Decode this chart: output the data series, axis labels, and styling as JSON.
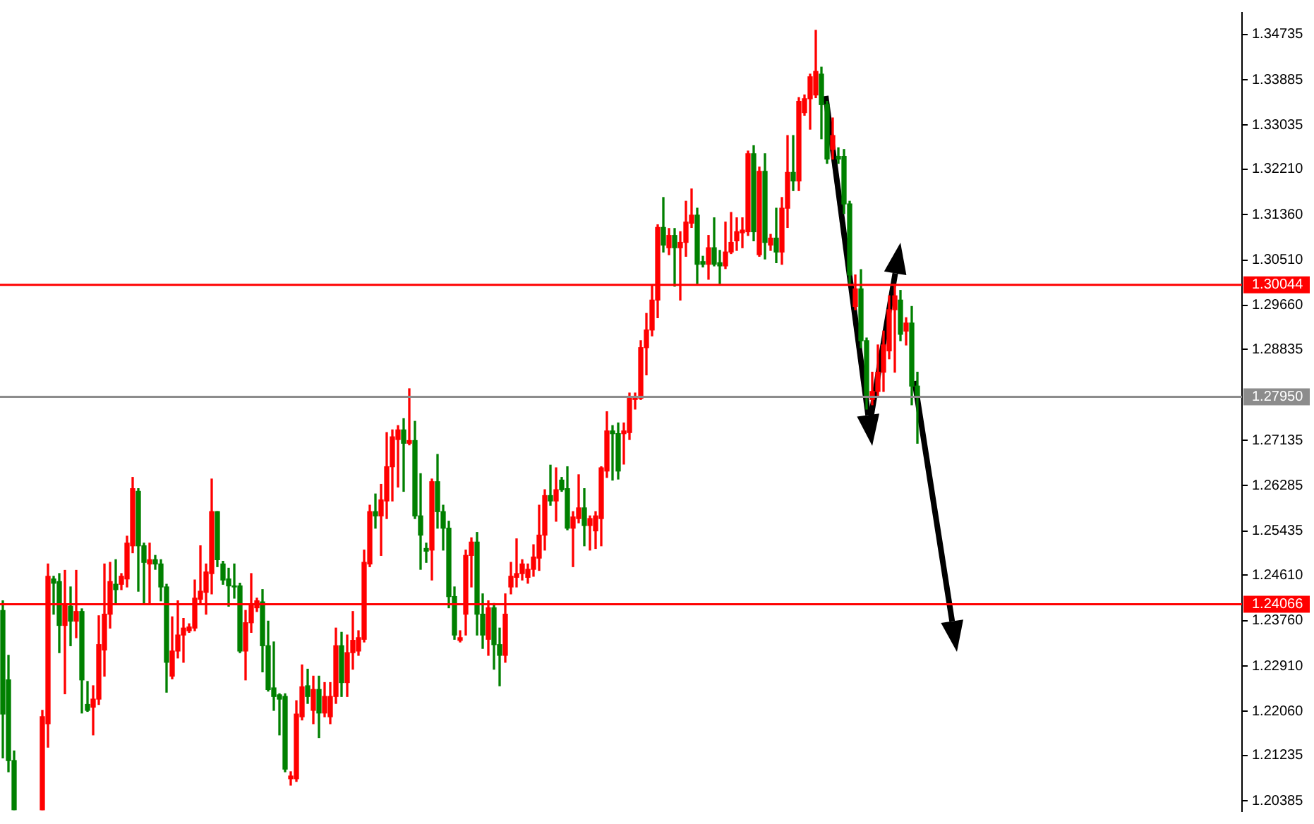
{
  "chart_data": {
    "type": "candlestick",
    "categories": [
      null,
      null,
      null,
      null,
      null,
      null,
      null,
      null,
      null,
      null,
      null,
      null,
      null,
      null,
      null,
      null,
      null,
      null,
      null,
      null,
      null,
      null,
      null,
      null,
      null,
      null,
      null,
      null,
      null,
      null,
      null,
      null,
      null,
      null,
      null,
      null,
      null,
      null,
      null,
      null,
      null,
      null,
      null,
      null,
      null,
      null,
      null,
      null,
      null,
      null,
      null,
      null,
      null,
      null,
      null,
      null,
      null,
      null,
      null,
      null,
      null,
      null,
      null,
      null,
      null,
      null,
      null,
      null,
      null,
      null,
      null,
      null,
      null,
      null,
      null,
      null,
      null,
      null,
      null,
      null,
      null,
      null,
      null,
      null,
      null,
      null,
      null,
      null,
      null,
      null,
      null,
      null,
      null,
      null,
      null,
      null,
      null,
      null,
      null,
      null,
      null,
      null,
      null,
      null,
      null,
      null,
      null,
      null,
      null,
      null,
      null,
      null,
      null,
      null,
      null,
      null,
      null,
      null,
      null,
      null,
      null,
      null,
      null,
      null,
      null,
      null,
      null,
      null,
      null,
      null,
      null,
      null,
      null,
      null,
      null,
      null,
      null,
      null,
      null,
      null,
      null,
      null,
      null,
      null,
      null,
      null,
      null,
      null,
      null,
      null,
      null,
      null,
      null,
      null,
      null,
      null,
      null,
      null,
      null,
      null,
      null,
      null,
      null,
      null,
      null,
      null,
      null,
      null,
      null,
      null,
      null,
      null,
      null,
      null,
      null,
      null,
      null,
      null,
      null,
      null,
      null,
      null,
      null,
      null,
      null,
      null,
      null,
      null,
      null,
      null,
      null,
      null,
      null,
      null,
      null,
      null,
      null,
      null,
      null,
      null,
      null,
      null,
      null,
      null,
      null,
      null,
      null,
      null,
      null,
      null,
      null,
      null,
      null,
      null,
      null,
      null,
      null,
      null,
      null,
      null
    ],
    "ohlc": [
      [
        1.2395,
        1.2413,
        1.2119,
        1.2201
      ],
      [
        1.2265,
        1.2311,
        1.2093,
        1.2114
      ],
      [
        1.2114,
        1.2132,
        1.2022,
        1.2022
      ],
      null,
      null,
      null,
      null,
      [
        1.2022,
        1.2208,
        1.2022,
        1.2196
      ],
      [
        1.2183,
        1.2482,
        1.2139,
        1.2459
      ],
      [
        1.2454,
        1.2459,
        1.2388,
        1.2446
      ],
      [
        1.2449,
        1.2464,
        1.2316,
        1.2367
      ],
      [
        1.2367,
        1.247,
        1.2239,
        1.2406
      ],
      [
        1.2403,
        1.2439,
        1.2329,
        1.2375
      ],
      [
        1.2375,
        1.247,
        1.2344,
        1.2393
      ],
      [
        1.2393,
        1.2398,
        1.2203,
        1.2265
      ],
      [
        1.2219,
        1.2262,
        1.2206,
        1.2208
      ],
      [
        1.2214,
        1.2254,
        1.2162,
        1.2229
      ],
      [
        1.2229,
        1.2385,
        1.2219,
        1.2331
      ],
      [
        1.2321,
        1.2482,
        1.2272,
        1.2388
      ],
      [
        1.2388,
        1.2485,
        1.2362,
        1.2449
      ],
      [
        1.2444,
        1.249,
        1.2408,
        1.2434
      ],
      [
        1.2444,
        1.2464,
        1.2434,
        1.2459
      ],
      [
        1.2454,
        1.2534,
        1.2439,
        1.2521
      ],
      [
        1.2516,
        1.2644,
        1.2503,
        1.2623
      ],
      [
        1.2618,
        1.2623,
        1.2431,
        1.2516
      ],
      [
        1.2516,
        1.2521,
        1.2408,
        1.2485
      ],
      [
        1.2482,
        1.2521,
        1.2406,
        1.249
      ],
      [
        1.249,
        1.2498,
        1.2472,
        1.2482
      ],
      [
        1.2482,
        1.249,
        1.2413,
        1.2439
      ],
      [
        1.2439,
        1.2444,
        1.2242,
        1.2298
      ],
      [
        1.2272,
        1.2383,
        1.2267,
        1.2319
      ],
      [
        1.2319,
        1.2413,
        1.2306,
        1.2349
      ],
      [
        1.2349,
        1.238,
        1.2298,
        1.2362
      ],
      [
        1.2357,
        1.237,
        1.2354,
        1.2364
      ],
      [
        1.2362,
        1.2452,
        1.2357,
        1.2418
      ],
      [
        1.2416,
        1.2516,
        1.2406,
        1.2431
      ],
      [
        1.2429,
        1.2482,
        1.2388,
        1.2467
      ],
      [
        1.2464,
        1.2641,
        1.2426,
        1.258
      ],
      [
        1.258,
        1.258,
        1.2477,
        1.249
      ],
      [
        1.2482,
        1.2487,
        1.2444,
        1.2452
      ],
      [
        1.2454,
        1.2474,
        1.2403,
        1.2441
      ],
      [
        1.2441,
        1.2482,
        1.2418,
        1.2439
      ],
      [
        1.2441,
        1.2446,
        1.2316,
        1.2319
      ],
      [
        1.2319,
        1.2395,
        1.2265,
        1.2372
      ],
      [
        1.2372,
        1.2464,
        1.2354,
        1.2406
      ],
      [
        1.24,
        1.2418,
        1.2393,
        1.2413
      ],
      [
        1.2411,
        1.2434,
        1.228,
        1.2329
      ],
      [
        1.2329,
        1.2375,
        1.2244,
        1.2247
      ],
      [
        1.225,
        1.2336,
        1.2208,
        1.2234
      ],
      [
        1.2237,
        1.2239,
        1.2162,
        1.2229
      ],
      [
        1.2234,
        1.2239,
        1.2093,
        1.2098
      ],
      [
        1.208,
        1.2093,
        1.2068,
        1.2085
      ],
      [
        1.208,
        1.2226,
        1.2075,
        1.2201
      ],
      [
        1.2196,
        1.2293,
        1.219,
        1.2252
      ],
      [
        1.2254,
        1.2285,
        1.2221,
        1.2234
      ],
      [
        1.2208,
        1.2272,
        1.2183,
        1.2247
      ],
      [
        1.2247,
        1.2272,
        1.2157,
        1.2203
      ],
      [
        1.2203,
        1.226,
        1.2196,
        1.2234
      ],
      [
        1.2196,
        1.226,
        1.2183,
        1.2234
      ],
      [
        1.2234,
        1.2362,
        1.2221,
        1.2329
      ],
      [
        1.2329,
        1.2354,
        1.2234,
        1.226
      ],
      [
        1.226,
        1.2349,
        1.2234,
        1.2316
      ],
      [
        1.2316,
        1.2393,
        1.2285,
        1.2339
      ],
      [
        1.2319,
        1.2357,
        1.2311,
        1.2344
      ],
      [
        1.2341,
        1.2508,
        1.2336,
        1.2485
      ],
      [
        1.2482,
        1.2592,
        1.2477,
        1.258
      ],
      [
        1.258,
        1.2613,
        1.2549,
        1.2572
      ],
      [
        1.2572,
        1.2631,
        1.2498,
        1.2602
      ],
      [
        1.26,
        1.2728,
        1.2567,
        1.2664
      ],
      [
        1.2664,
        1.2733,
        1.26,
        1.272
      ],
      [
        1.2715,
        1.2741,
        1.2626,
        1.2733
      ],
      [
        1.2733,
        1.2754,
        1.2618,
        1.2708
      ],
      [
        1.2708,
        1.281,
        1.2705,
        1.2713
      ],
      [
        1.2713,
        1.2749,
        1.2567,
        1.2572
      ],
      [
        1.2572,
        1.2651,
        1.2472,
        1.2536
      ],
      [
        1.2511,
        1.2521,
        1.2485,
        1.2506
      ],
      [
        1.2508,
        1.2641,
        1.2452,
        1.2636
      ],
      [
        1.2636,
        1.2687,
        1.2549,
        1.258
      ],
      [
        1.258,
        1.2592,
        1.2508,
        1.2549
      ],
      [
        1.2549,
        1.2562,
        1.24,
        1.2421
      ],
      [
        1.2421,
        1.2439,
        1.2341,
        1.2349
      ],
      [
        1.2339,
        1.2357,
        1.2336,
        1.2344
      ],
      [
        1.2388,
        1.2508,
        1.2349,
        1.2498
      ],
      [
        1.2498,
        1.2531,
        1.2439,
        1.2523
      ],
      [
        1.2523,
        1.2541,
        1.2349,
        1.2388
      ],
      [
        1.2388,
        1.2426,
        1.2324,
        1.2349
      ],
      [
        1.2341,
        1.2413,
        1.2311,
        1.24
      ],
      [
        1.24,
        1.2408,
        1.2285,
        1.2331
      ],
      [
        1.2331,
        1.2362,
        1.2254,
        1.2311
      ],
      [
        1.2311,
        1.2426,
        1.2298,
        1.2388
      ],
      [
        1.2439,
        1.2485,
        1.2426,
        1.2459
      ],
      [
        1.2457,
        1.2529,
        1.2439,
        1.2464
      ],
      [
        1.2464,
        1.249,
        1.2452,
        1.2482
      ],
      [
        1.2457,
        1.2482,
        1.2446,
        1.2472
      ],
      [
        1.2472,
        1.2518,
        1.2459,
        1.2495
      ],
      [
        1.2493,
        1.2592,
        1.247,
        1.2536
      ],
      [
        1.2536,
        1.2621,
        1.2508,
        1.261
      ],
      [
        1.261,
        1.2667,
        1.2592,
        1.26
      ],
      [
        1.26,
        1.2662,
        1.2562,
        1.2621
      ],
      [
        1.2639,
        1.2644,
        1.2618,
        1.2621
      ],
      [
        1.2623,
        1.2664,
        1.2546,
        1.2549
      ],
      [
        1.2549,
        1.258,
        1.2477,
        1.257
      ],
      [
        1.2567,
        1.2649,
        1.2559,
        1.2587
      ],
      [
        1.2587,
        1.2623,
        1.2516,
        1.2554
      ],
      [
        1.2554,
        1.2572,
        1.2508,
        1.2567
      ],
      [
        1.2544,
        1.258,
        1.2511,
        1.2572
      ],
      [
        1.2567,
        1.2664,
        1.2516,
        1.2662
      ],
      [
        1.2656,
        1.2767,
        1.2644,
        1.2731
      ],
      [
        1.2731,
        1.2741,
        1.2639,
        1.2726
      ],
      [
        1.2726,
        1.2746,
        1.2641,
        1.2656
      ],
      [
        1.2726,
        1.2746,
        1.2669,
        1.2731
      ],
      [
        1.2728,
        1.2802,
        1.2715,
        1.2792
      ],
      [
        1.279,
        1.2802,
        1.2772,
        1.2795
      ],
      [
        1.2792,
        1.29,
        1.279,
        1.2887
      ],
      [
        1.2887,
        1.2951,
        1.2836,
        1.292
      ],
      [
        1.292,
        1.3002,
        1.2909,
        1.2976
      ],
      [
        1.2976,
        1.3117,
        1.2943,
        1.3112
      ],
      [
        1.3112,
        1.3168,
        1.3066,
        1.3079
      ],
      [
        1.3074,
        1.311,
        1.3061,
        1.3097
      ],
      [
        1.3097,
        1.311,
        1.3002,
        1.3074
      ],
      [
        1.3074,
        1.3104,
        1.2976,
        1.3084
      ],
      [
        1.3084,
        1.3161,
        1.3058,
        1.3122
      ],
      [
        1.312,
        1.3184,
        1.3112,
        1.3135
      ],
      [
        1.3135,
        1.3148,
        1.3007,
        1.3043
      ],
      [
        1.3048,
        1.3058,
        1.3038,
        1.3043
      ],
      [
        1.3043,
        1.3097,
        1.3015,
        1.3074
      ],
      [
        1.3074,
        1.313,
        1.304,
        1.3043
      ],
      [
        1.3046,
        1.3069,
        1.3007,
        1.304
      ],
      [
        1.304,
        1.3122,
        1.3035,
        1.3066
      ],
      [
        1.3066,
        1.314,
        1.3063,
        1.3084
      ],
      [
        1.3087,
        1.313,
        1.3069,
        1.3104
      ],
      [
        1.3102,
        1.313,
        1.3074,
        1.3107
      ],
      [
        1.3104,
        1.3255,
        1.3097,
        1.325
      ],
      [
        1.325,
        1.3265,
        1.3087,
        1.3104
      ],
      [
        1.3061,
        1.3225,
        1.3058,
        1.3217
      ],
      [
        1.3217,
        1.325,
        1.3053,
        1.3084
      ],
      [
        1.3079,
        1.3099,
        1.3069,
        1.3092
      ],
      [
        1.3092,
        1.3148,
        1.3046,
        1.3066
      ],
      [
        1.3066,
        1.3168,
        1.3043,
        1.3148
      ],
      [
        1.3148,
        1.3284,
        1.3112,
        1.3215
      ],
      [
        1.3215,
        1.3284,
        1.3181,
        1.3199
      ],
      [
        1.3199,
        1.3355,
        1.3181,
        1.3348
      ],
      [
        1.3327,
        1.336,
        1.3322,
        1.3353
      ],
      [
        1.3353,
        1.3399,
        1.3296,
        1.3394
      ],
      [
        1.336,
        1.3481,
        1.3355,
        1.3404
      ],
      [
        1.3399,
        1.3412,
        1.3278,
        1.3342
      ],
      [
        1.3342,
        1.3348,
        1.3232,
        1.324
      ],
      [
        1.3258,
        1.3317,
        1.324,
        1.3284
      ],
      [
        1.3245,
        1.3261,
        1.3232,
        1.324
      ],
      [
        1.3245,
        1.3258,
        1.3138,
        1.3156
      ],
      [
        1.3156,
        1.3161,
        1.3007,
        1.3023
      ],
      [
        1.2964,
        1.3023,
        1.2958,
        1.2997
      ],
      [
        1.2997,
        1.3033,
        1.2887,
        1.29
      ],
      [
        1.29,
        1.2905,
        1.2772,
        1.2797
      ],
      [
        1.279,
        1.2841,
        1.278,
        1.2805
      ],
      [
        1.2805,
        1.2892,
        1.2797,
        1.2841
      ],
      [
        1.2841,
        1.2918,
        1.2805,
        1.2892
      ],
      [
        1.2881,
        1.2984,
        1.2866,
        1.2958
      ],
      [
        1.2958,
        1.3005,
        1.2841,
        1.2984
      ],
      [
        1.2976,
        1.2994,
        1.29,
        1.2912
      ],
      [
        1.2918,
        1.2943,
        1.2892,
        1.2933
      ],
      [
        1.2933,
        1.2964,
        1.278,
        1.2815
      ],
      [
        1.2815,
        1.2841,
        1.2708,
        1.2795
      ],
      null,
      null,
      null,
      null,
      null,
      null,
      null,
      null,
      null,
      null,
      null,
      null,
      null,
      null,
      null,
      null,
      null,
      null,
      null,
      null,
      null,
      null,
      null,
      null,
      null,
      null,
      null,
      null,
      null,
      null,
      null,
      null,
      null,
      null,
      null,
      null,
      null,
      null,
      null,
      null,
      null,
      null,
      null,
      null,
      null,
      null,
      null,
      null,
      null,
      null,
      null,
      null,
      null,
      null,
      null,
      null,
      null
    ],
    "colors": [
      "#008000",
      "#008000",
      "#008000",
      null,
      null,
      null,
      null,
      "#ff0000",
      "#ff0000",
      "#008000",
      "#008000",
      "#ff0000",
      "#008000",
      "#ff0000",
      "#008000",
      "#008000",
      "#ff0000",
      "#ff0000",
      "#ff0000",
      "#ff0000",
      "#008000",
      "#ff0000",
      "#ff0000",
      "#ff0000",
      "#008000",
      "#008000",
      "#ff0000",
      "#008000",
      "#008000",
      "#008000",
      "#ff0000",
      "#ff0000",
      "#ff0000",
      "#ff0000",
      "#ff0000",
      "#ff0000",
      "#ff0000",
      "#ff0000",
      "#008000",
      "#008000",
      "#008000",
      "#008000",
      "#008000",
      "#ff0000",
      "#ff0000",
      "#ff0000",
      "#008000",
      "#008000",
      "#008000",
      "#008000",
      "#008000",
      "#ff0000",
      "#ff0000",
      "#ff0000",
      "#008000",
      "#ff0000",
      "#008000",
      "#ff0000",
      "#ff0000",
      "#ff0000",
      "#008000",
      "#ff0000",
      "#ff0000",
      "#ff0000",
      "#ff0000",
      "#ff0000",
      "#008000",
      "#ff0000",
      "#ff0000",
      "#ff0000",
      "#ff0000",
      "#008000",
      "#ff0000",
      "#008000",
      "#008000",
      "#008000",
      "#ff0000",
      "#008000",
      "#008000",
      "#008000",
      "#008000",
      "#ff0000",
      "#ff0000",
      "#ff0000",
      "#008000",
      "#008000",
      "#ff0000",
      "#008000",
      "#008000",
      "#ff0000",
      "#ff0000",
      "#ff0000",
      "#ff0000",
      "#ff0000",
      "#ff0000",
      "#ff0000",
      "#ff0000",
      "#008000",
      "#ff0000",
      "#008000",
      "#008000",
      "#ff0000",
      "#ff0000",
      "#008000",
      "#ff0000",
      "#ff0000",
      "#ff0000",
      "#ff0000",
      "#008000",
      "#008000",
      "#ff0000",
      "#ff0000",
      "#ff0000",
      "#ff0000",
      "#ff0000",
      "#ff0000",
      "#ff0000",
      "#008000",
      "#ff0000",
      "#008000",
      "#ff0000",
      "#ff0000",
      "#ff0000",
      "#008000",
      "#008000",
      "#ff0000",
      "#008000",
      "#008000",
      "#ff0000",
      "#ff0000",
      "#ff0000",
      "#ff0000",
      "#ff0000",
      "#008000",
      "#ff0000",
      "#008000",
      "#ff0000",
      "#008000",
      "#ff0000",
      "#ff0000",
      "#008000",
      "#ff0000",
      "#ff0000",
      "#ff0000",
      "#ff0000",
      "#008000",
      "#008000",
      "#ff0000",
      "#008000",
      "#008000",
      "#008000",
      "#ff0000",
      "#008000",
      "#008000",
      "#ff0000",
      "#ff0000",
      "#ff0000",
      "#ff0000",
      "#ff0000",
      "#008000",
      "#ff0000",
      "#008000",
      "#008000",
      null,
      null,
      null,
      null,
      null,
      null,
      null,
      null,
      null,
      null,
      null,
      null,
      null,
      null,
      null,
      null,
      null,
      null,
      null,
      null,
      null,
      null,
      null,
      null,
      null,
      null,
      null,
      null,
      null,
      null,
      null,
      null,
      null,
      null,
      null,
      null,
      null,
      null,
      null,
      null,
      null,
      null,
      null,
      null,
      null,
      null,
      null,
      null,
      null,
      null,
      null,
      null,
      null,
      null,
      null,
      null,
      null
    ],
    "ylim": [
      1.2019,
      1.3514
    ],
    "yticks": [
      1.34735,
      1.33885,
      1.33035,
      {
        "value": 1.3221,
        "label": "1.32210"
      },
      {
        "value": 1.3136,
        "label": "1.31360"
      },
      {
        "value": 1.3051,
        "label": "1.30510"
      },
      {
        "value": 1.2966,
        "label": "1.29660"
      },
      1.28835,
      1.27135,
      1.26285,
      1.25435,
      {
        "value": 1.2461,
        "label": "1.24610"
      },
      {
        "value": 1.2376,
        "label": "1.23760"
      },
      {
        "value": 1.2291,
        "label": "1.22910"
      },
      {
        "value": 1.2206,
        "label": "1.22060"
      },
      1.21235,
      1.20385
    ],
    "tick_labels": "y",
    "ref_lines": [
      {
        "axis": "y",
        "value": 1.30044,
        "label": "1.30044",
        "color": "#ff0000"
      },
      {
        "axis": "y",
        "value": 1.2795,
        "label": "1.27950",
        "color": "#8c8c8c"
      },
      {
        "axis": "y",
        "value": 1.24066,
        "label": "1.24066",
        "color": "#ff0000"
      }
    ]
  }
}
